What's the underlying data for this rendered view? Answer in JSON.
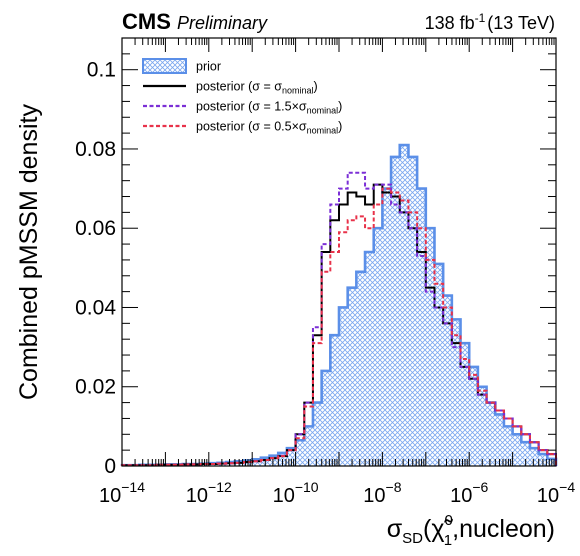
{
  "header": {
    "experiment": "CMS",
    "status": "Preliminary",
    "lumi": "138 fb",
    "lumi_exp": "-1",
    "energy": "(13 TeV)"
  },
  "axes": {
    "ylabel": "Combined pMSSM density",
    "xlabel_main": "σ",
    "xlabel_sub": "SD",
    "xlabel_particle": "χ̃",
    "xlabel_sup": "0",
    "xlabel_particle_sub": "1",
    "xlabel_tail": ",nucleon)",
    "x_tick_base": "10",
    "x_ticks": [
      {
        "value": -14,
        "exp": "−14"
      },
      {
        "value": -12,
        "exp": "−12"
      },
      {
        "value": -10,
        "exp": "−10"
      },
      {
        "value": -8,
        "exp": "−8"
      },
      {
        "value": -6,
        "exp": "−6"
      },
      {
        "value": -4,
        "exp": "−4"
      }
    ],
    "y_ticks": [
      {
        "value": 0,
        "label": "0"
      },
      {
        "value": 0.02,
        "label": "0.02"
      },
      {
        "value": 0.04,
        "label": "0.04"
      },
      {
        "value": 0.06,
        "label": "0.06"
      },
      {
        "value": 0.08,
        "label": "0.08"
      },
      {
        "value": 0.1,
        "label": "0.1"
      }
    ]
  },
  "legend": [
    {
      "key": "prior",
      "label": "prior"
    },
    {
      "key": "nominal",
      "label": "posterior (σ = σ",
      "sub": "nominal",
      "tail": ")"
    },
    {
      "key": "x15",
      "label": "posterior (σ = 1.5×σ",
      "sub": "nominal",
      "tail": ")"
    },
    {
      "key": "x05",
      "label": "posterior (σ = 0.5×σ",
      "sub": "nominal",
      "tail": ")"
    }
  ],
  "colors": {
    "prior_line": "#5b8fe8",
    "prior_fill": "#7aa7f0",
    "nominal": "#000000",
    "x15": "#7b2fd6",
    "x05": "#e8324a"
  },
  "chart_data": {
    "type": "histogram",
    "x_scale": "log10",
    "xlim_log10": [
      -14,
      -4
    ],
    "ylim": [
      0,
      0.108
    ],
    "grid": false,
    "legend_placement": "top-left",
    "bin_edges_log10": [
      -14,
      -13.8,
      -13.6,
      -13.4,
      -13.2,
      -13.0,
      -12.8,
      -12.6,
      -12.4,
      -12.2,
      -12.0,
      -11.8,
      -11.6,
      -11.4,
      -11.2,
      -11.0,
      -10.8,
      -10.6,
      -10.4,
      -10.2,
      -10.0,
      -9.8,
      -9.6,
      -9.4,
      -9.2,
      -9.0,
      -8.8,
      -8.6,
      -8.4,
      -8.2,
      -8.0,
      -7.8,
      -7.6,
      -7.4,
      -7.2,
      -7.0,
      -6.8,
      -6.6,
      -6.4,
      -6.2,
      -6.0,
      -5.8,
      -5.6,
      -5.4,
      -5.2,
      -5.0,
      -4.8,
      -4.6,
      -4.4,
      -4.2,
      -4.0
    ],
    "series": [
      {
        "name": "prior",
        "values": [
          0.0002,
          0.0002,
          0.0003,
          0.0003,
          0.0003,
          0.0004,
          0.0004,
          0.0005,
          0.0005,
          0.0006,
          0.0007,
          0.0008,
          0.001,
          0.0012,
          0.0014,
          0.0017,
          0.0021,
          0.0026,
          0.0033,
          0.0045,
          0.0065,
          0.01,
          0.016,
          0.024,
          0.033,
          0.04,
          0.045,
          0.049,
          0.054,
          0.06,
          0.07,
          0.078,
          0.081,
          0.078,
          0.07,
          0.06,
          0.051,
          0.043,
          0.037,
          0.031,
          0.025,
          0.02,
          0.016,
          0.013,
          0.01,
          0.008,
          0.006,
          0.0045,
          0.003,
          0.0018
        ]
      },
      {
        "name": "posterior (σ = σnominal)",
        "values": [
          0.0002,
          0.0002,
          0.0002,
          0.0002,
          0.0003,
          0.0003,
          0.0003,
          0.0004,
          0.0004,
          0.0005,
          0.0005,
          0.0006,
          0.0007,
          0.0008,
          0.001,
          0.0012,
          0.0015,
          0.002,
          0.0025,
          0.004,
          0.008,
          0.016,
          0.033,
          0.054,
          0.062,
          0.066,
          0.069,
          0.068,
          0.066,
          0.071,
          0.069,
          0.068,
          0.064,
          0.06,
          0.054,
          0.045,
          0.04,
          0.036,
          0.031,
          0.025,
          0.022,
          0.018,
          0.016,
          0.014,
          0.012,
          0.01,
          0.008,
          0.006,
          0.004,
          0.003
        ]
      },
      {
        "name": "posterior (σ = 1.5×σnominal)",
        "values": [
          0.0002,
          0.0002,
          0.0002,
          0.0002,
          0.0003,
          0.0003,
          0.0003,
          0.0004,
          0.0004,
          0.0005,
          0.0005,
          0.0006,
          0.0007,
          0.0008,
          0.001,
          0.0012,
          0.0015,
          0.002,
          0.0026,
          0.004,
          0.008,
          0.016,
          0.035,
          0.056,
          0.066,
          0.07,
          0.074,
          0.074,
          0.07,
          0.071,
          0.071,
          0.066,
          0.064,
          0.06,
          0.053,
          0.044,
          0.04,
          0.036,
          0.03,
          0.025,
          0.022,
          0.018,
          0.016,
          0.014,
          0.012,
          0.01,
          0.008,
          0.006,
          0.004,
          0.003
        ]
      },
      {
        "name": "posterior (σ = 0.5×σnominal)",
        "values": [
          0.0002,
          0.0002,
          0.0002,
          0.0002,
          0.0003,
          0.0003,
          0.0003,
          0.0004,
          0.0004,
          0.0005,
          0.0005,
          0.0006,
          0.0007,
          0.0008,
          0.001,
          0.0012,
          0.0015,
          0.002,
          0.0025,
          0.004,
          0.007,
          0.015,
          0.031,
          0.049,
          0.054,
          0.059,
          0.062,
          0.063,
          0.06,
          0.066,
          0.07,
          0.069,
          0.067,
          0.064,
          0.06,
          0.052,
          0.046,
          0.04,
          0.033,
          0.027,
          0.023,
          0.019,
          0.016,
          0.014,
          0.012,
          0.01,
          0.008,
          0.006,
          0.004,
          0.003
        ]
      }
    ]
  }
}
